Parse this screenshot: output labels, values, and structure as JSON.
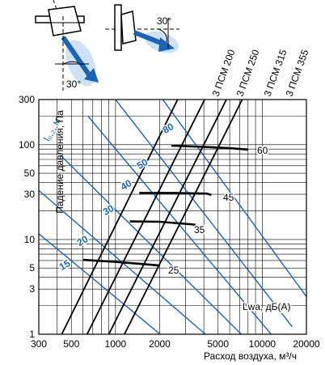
{
  "colors": {
    "blue": "#1a63b5",
    "black": "#000000",
    "grid": "#000000"
  },
  "icons": [
    "outlet-diagram-vertical-icon",
    "outlet-diagram-horizontal-icon"
  ],
  "diagram": {
    "angle_label_left": "30°",
    "angle_label_right": "30°"
  },
  "chart_data": {
    "type": "line",
    "xscale": "log",
    "yscale": "log",
    "xlabel": "Расход воздуха, м³/ч",
    "ylabel": "Падение давления, Па",
    "xlim": [
      300,
      20000
    ],
    "ylim": [
      1,
      300
    ],
    "x_ticks": [
      300,
      500,
      1000,
      2000,
      5000,
      10000,
      20000
    ],
    "y_ticks": [
      1,
      3,
      5,
      10,
      30,
      50,
      100,
      300
    ],
    "series": [
      {
        "name": "3 ПСМ 200",
        "points": [
          [
            430,
            1
          ],
          [
            2650,
            300
          ]
        ]
      },
      {
        "name": "3 ПСМ 250",
        "points": [
          [
            640,
            1
          ],
          [
            4050,
            300
          ]
        ]
      },
      {
        "name": "3 ПСМ 315",
        "points": [
          [
            900,
            1
          ],
          [
            5700,
            300
          ]
        ]
      },
      {
        "name": "3 ПСМ 355",
        "points": [
          [
            1150,
            1
          ],
          [
            7300,
            300
          ]
        ]
      }
    ],
    "throw_label": "l₀,₂, м",
    "throw_lines": [
      {
        "label": "15",
        "points": [
          [
            300,
            11.5
          ],
          [
            3000,
            0.6
          ]
        ]
      },
      {
        "label": "20",
        "points": [
          [
            300,
            33
          ],
          [
            4100,
            1
          ]
        ]
      },
      {
        "label": "30",
        "points": [
          [
            420,
            78
          ],
          [
            7200,
            1
          ]
        ]
      },
      {
        "label": "40",
        "points": [
          [
            650,
            200
          ],
          [
            11500,
            1
          ]
        ]
      },
      {
        "label": "50",
        "points": [
          [
            1000,
            300
          ],
          [
            16000,
            1.2
          ]
        ]
      },
      {
        "label": "80",
        "points": [
          [
            2100,
            300
          ],
          [
            20000,
            2.5
          ]
        ]
      }
    ],
    "noise_label": "Lwa, дБ(А)",
    "noise_lines": [
      {
        "label": "25",
        "points": [
          [
            600,
            6.1
          ],
          [
            1000,
            5.8
          ],
          [
            1800,
            5.4
          ],
          [
            2000,
            5.3
          ]
        ]
      },
      {
        "label": "35",
        "points": [
          [
            1250,
            15.5
          ],
          [
            2000,
            15.4
          ],
          [
            3200,
            14.5
          ],
          [
            3500,
            14.3
          ]
        ]
      },
      {
        "label": "45",
        "points": [
          [
            1450,
            31
          ],
          [
            2500,
            31
          ],
          [
            4200,
            30.5
          ],
          [
            4500,
            29.5
          ]
        ]
      },
      {
        "label": "60",
        "points": [
          [
            2400,
            98
          ],
          [
            4000,
            95
          ],
          [
            6000,
            92
          ],
          [
            8000,
            89
          ]
        ]
      }
    ]
  }
}
